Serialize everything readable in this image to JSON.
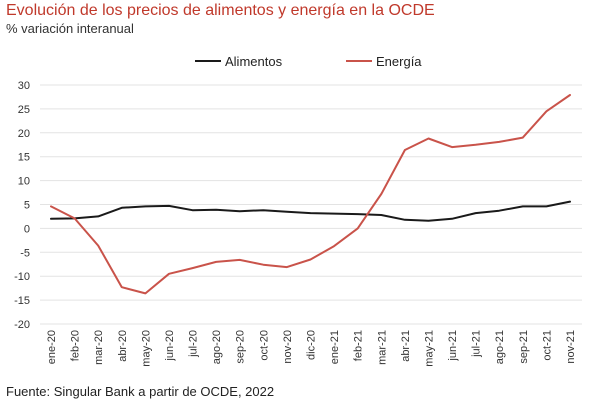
{
  "title": "Evolución de los precios de alimentos y energía en la OCDE",
  "subtitle": "% variación interanual",
  "source": "Fuente: Singular Bank a partir de OCDE, 2022",
  "chart_data": {
    "type": "line",
    "categories": [
      "ene-20",
      "feb-20",
      "mar-20",
      "abr-20",
      "may-20",
      "jun-20",
      "jul-20",
      "ago-20",
      "sep-20",
      "oct-20",
      "nov-20",
      "dic-20",
      "ene-21",
      "feb-21",
      "mar-21",
      "abr-21",
      "may-21",
      "jun-21",
      "jul-21",
      "ago-21",
      "sep-21",
      "oct-21",
      "nov-21"
    ],
    "ylim": [
      -20,
      30
    ],
    "yticks": [
      -20,
      -15,
      -10,
      -5,
      0,
      5,
      10,
      15,
      20,
      25,
      30
    ],
    "grid": true,
    "legend_position": "top-center",
    "series": [
      {
        "name": "Alimentos",
        "color": "#1a1a1a",
        "values": [
          2.0,
          2.1,
          2.5,
          4.3,
          4.6,
          4.7,
          3.8,
          3.9,
          3.6,
          3.8,
          3.5,
          3.2,
          3.1,
          3.0,
          2.8,
          1.8,
          1.6,
          2.0,
          3.2,
          3.7,
          4.6,
          4.6,
          5.6
        ]
      },
      {
        "name": "Energía",
        "color": "#c9534a",
        "values": [
          4.6,
          2.1,
          -3.6,
          -12.3,
          -13.6,
          -9.5,
          -8.3,
          -7.0,
          -6.6,
          -7.6,
          -8.1,
          -6.5,
          -3.7,
          0.0,
          7.2,
          16.4,
          18.8,
          17.0,
          17.5,
          18.1,
          19.0,
          24.5,
          27.9
        ]
      }
    ]
  }
}
